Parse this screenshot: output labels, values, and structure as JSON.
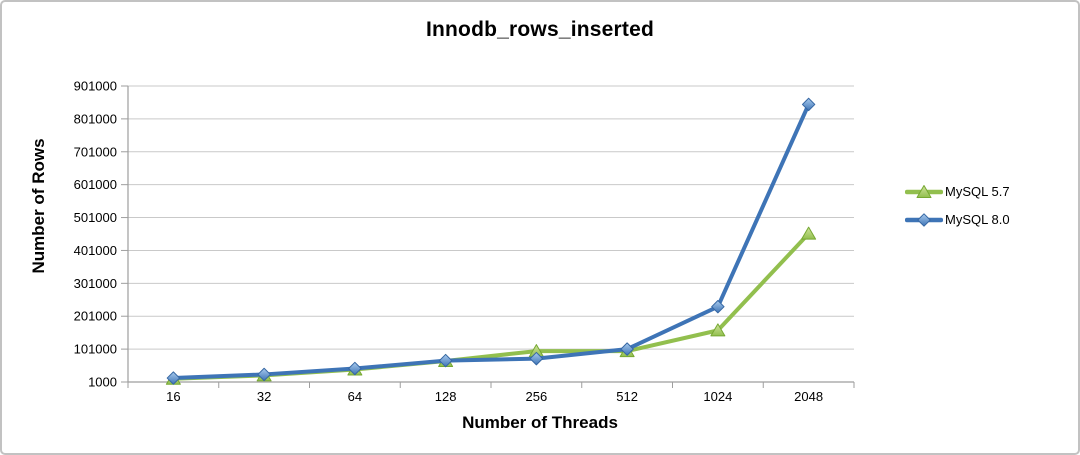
{
  "chart_data": {
    "type": "line",
    "title": "Innodb_rows_inserted",
    "xlabel": "Number of Threads",
    "ylabel": "Number of Rows",
    "categories": [
      "16",
      "32",
      "64",
      "128",
      "256",
      "512",
      "1024",
      "2048"
    ],
    "series": [
      {
        "name": "MySQL 5.7",
        "marker": "triangle",
        "color": "#92bf4e",
        "marker_light": "#cfe39b",
        "marker_dark": "#76a832",
        "values": [
          11000,
          21000,
          39000,
          65000,
          95000,
          95000,
          158000,
          452000
        ]
      },
      {
        "name": "MySQL 8.0",
        "marker": "diamond",
        "color": "#3e74b6",
        "marker_light": "#a9cbee",
        "marker_dark": "#3667a3",
        "values": [
          13000,
          24000,
          42000,
          66000,
          72000,
          101000,
          230000,
          845000
        ]
      }
    ],
    "y_axis": {
      "min": 1000,
      "max": 901000,
      "step": 100000,
      "tick_labels": [
        "1000",
        "101000",
        "201000",
        "301000",
        "401000",
        "501000",
        "601000",
        "701000",
        "801000",
        "901000"
      ]
    },
    "legend_position": "right",
    "grid": true
  },
  "colors": {
    "grid": "#c9c9c9",
    "axis": "#9e9e9e",
    "text": "#000000",
    "background": "#ffffff"
  }
}
